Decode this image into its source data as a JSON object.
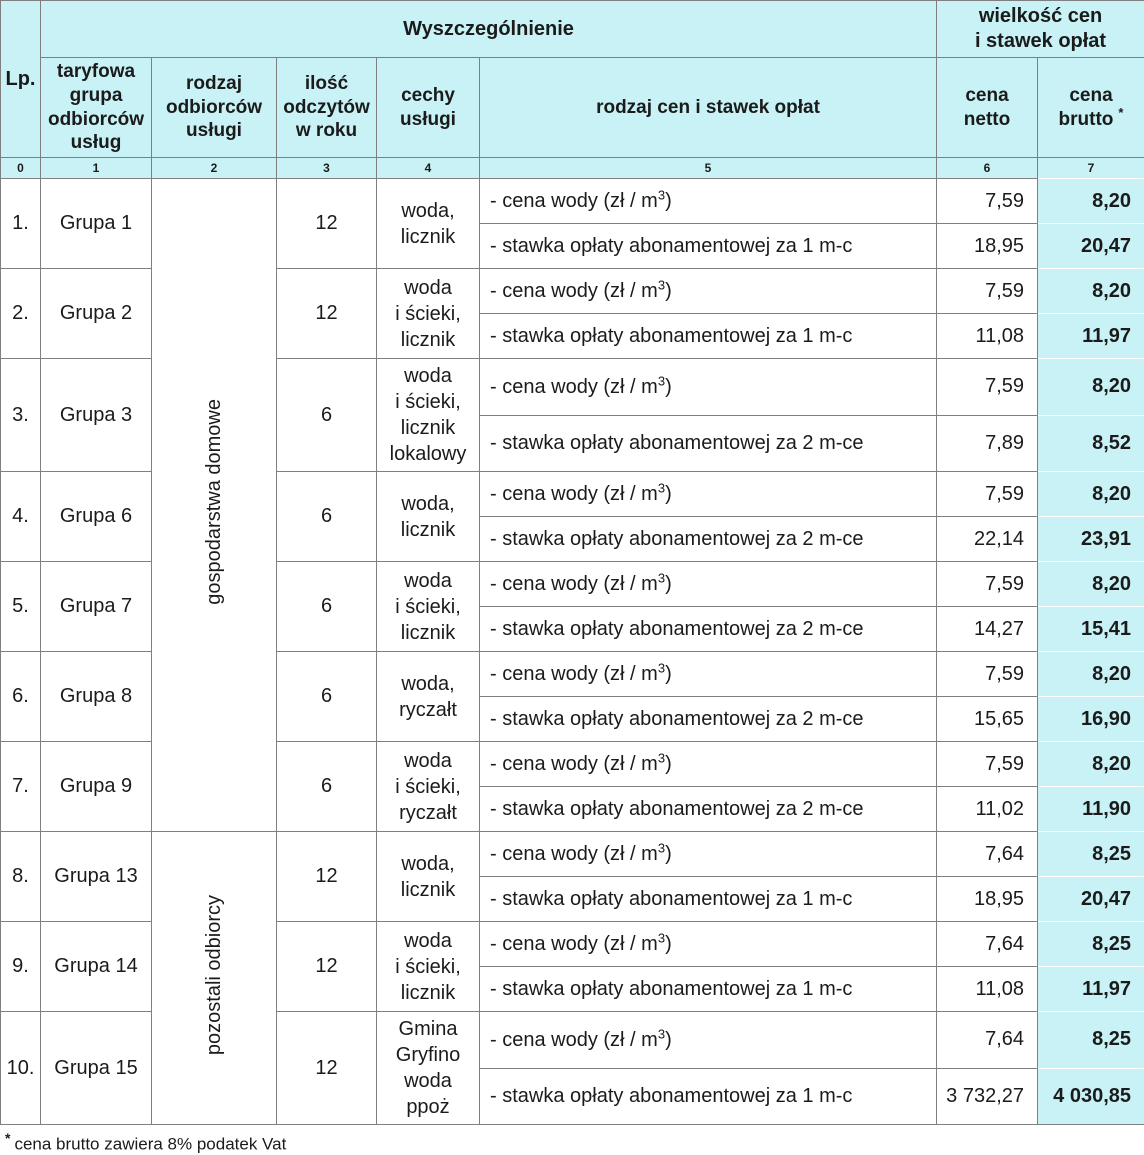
{
  "colors": {
    "header_bg": "#c8f2f5",
    "brutto_bg": "#c8f2f5",
    "border": "#7f7f7f",
    "text": "#1b1b1b"
  },
  "table": {
    "header": {
      "lp": "Lp.",
      "wyszczegolnienie": "Wyszczególnienie",
      "wielkosc": "wielkość cen\ni stawek opłat",
      "col_grupa": "taryfowa\ngrupa\nodbiorców\nusług",
      "col_rodzaj_odbiorcow": "rodzaj\nodbiorców\nusługi",
      "col_ilosc": "ilość\nodczytów\nw roku",
      "col_cechy": "cechy\nusługi",
      "col_rodzaj_cen": "rodzaj cen i stawek opłat",
      "col_netto": "cena\nnetto",
      "col_brutto": "cena\nbrutto",
      "col_brutto_star": "*",
      "numbers": [
        "0",
        "1",
        "2",
        "3",
        "4",
        "5",
        "6",
        "7"
      ]
    },
    "recipients": [
      {
        "label": "gospodarstwa domowe",
        "groups_spanned": 7
      },
      {
        "label": "pozostali odbiorcy",
        "groups_spanned": 3
      }
    ],
    "groups": [
      {
        "lp": "1.",
        "grupa": "Grupa 1",
        "odczyty": "12",
        "cechy": "woda,\nlicznik",
        "rows": [
          {
            "label": "- cena wody (zł / m",
            "sup": "3",
            "end": ")",
            "netto": "7,59",
            "brutto": "8,20"
          },
          {
            "label": "- stawka opłaty abonamentowej za 1 m-c",
            "sup": "",
            "end": "",
            "netto": "18,95",
            "brutto": "20,47"
          }
        ]
      },
      {
        "lp": "2.",
        "grupa": "Grupa 2",
        "odczyty": "12",
        "cechy": "woda\ni ścieki,\nlicznik",
        "rows": [
          {
            "label": "- cena wody (zł / m",
            "sup": "3",
            "end": ")",
            "netto": "7,59",
            "brutto": "8,20"
          },
          {
            "label": "- stawka opłaty abonamentowej za 1 m-c",
            "sup": "",
            "end": "",
            "netto": "11,08",
            "brutto": "11,97"
          }
        ]
      },
      {
        "lp": "3.",
        "grupa": "Grupa 3",
        "odczyty": "6",
        "cechy": "woda\ni ścieki,\nlicznik\nlokalowy",
        "rows": [
          {
            "label": "- cena wody (zł / m",
            "sup": "3",
            "end": ")",
            "netto": "7,59",
            "brutto": "8,20"
          },
          {
            "label": "- stawka opłaty abonamentowej za 2 m-ce",
            "sup": "",
            "end": "",
            "netto": "7,89",
            "brutto": "8,52"
          }
        ]
      },
      {
        "lp": "4.",
        "grupa": "Grupa 6",
        "odczyty": "6",
        "cechy": "woda,\nlicznik",
        "rows": [
          {
            "label": "- cena wody (zł / m",
            "sup": "3",
            "end": ")",
            "netto": "7,59",
            "brutto": "8,20"
          },
          {
            "label": "- stawka opłaty abonamentowej za 2 m-ce",
            "sup": "",
            "end": "",
            "netto": "22,14",
            "brutto": "23,91"
          }
        ]
      },
      {
        "lp": "5.",
        "grupa": "Grupa 7",
        "odczyty": "6",
        "cechy": "woda\ni ścieki,\nlicznik",
        "rows": [
          {
            "label": "- cena wody (zł / m",
            "sup": "3",
            "end": ")",
            "netto": "7,59",
            "brutto": "8,20"
          },
          {
            "label": "- stawka opłaty abonamentowej za 2 m-ce",
            "sup": "",
            "end": "",
            "netto": "14,27",
            "brutto": "15,41"
          }
        ]
      },
      {
        "lp": "6.",
        "grupa": "Grupa 8",
        "odczyty": "6",
        "cechy": "woda,\nryczałt",
        "rows": [
          {
            "label": "- cena wody (zł / m",
            "sup": "3",
            "end": ")",
            "netto": "7,59",
            "brutto": "8,20"
          },
          {
            "label": "- stawka opłaty abonamentowej za 2 m-ce",
            "sup": "",
            "end": "",
            "netto": "15,65",
            "brutto": "16,90"
          }
        ]
      },
      {
        "lp": "7.",
        "grupa": "Grupa 9",
        "odczyty": "6",
        "cechy": "woda\ni ścieki,\nryczałt",
        "rows": [
          {
            "label": "- cena wody (zł / m",
            "sup": "3",
            "end": ")",
            "netto": "7,59",
            "brutto": "8,20"
          },
          {
            "label": "- stawka opłaty abonamentowej za 2 m-ce",
            "sup": "",
            "end": "",
            "netto": "11,02",
            "brutto": "11,90"
          }
        ]
      },
      {
        "lp": "8.",
        "grupa": "Grupa 13",
        "odczyty": "12",
        "cechy": "woda,\nlicznik",
        "rows": [
          {
            "label": "- cena wody (zł / m",
            "sup": "3",
            "end": ")",
            "netto": "7,64",
            "brutto": "8,25"
          },
          {
            "label": "- stawka opłaty abonamentowej za 1 m-c",
            "sup": "",
            "end": "",
            "netto": "18,95",
            "brutto": "20,47"
          }
        ]
      },
      {
        "lp": "9.",
        "grupa": "Grupa 14",
        "odczyty": "12",
        "cechy": "woda\ni ścieki,\nlicznik",
        "rows": [
          {
            "label": "- cena wody (zł / m",
            "sup": "3",
            "end": ")",
            "netto": "7,64",
            "brutto": "8,25"
          },
          {
            "label": "- stawka opłaty abonamentowej za 1 m-c",
            "sup": "",
            "end": "",
            "netto": "11,08",
            "brutto": "11,97"
          }
        ]
      },
      {
        "lp": "10.",
        "grupa": "Grupa 15",
        "odczyty": "12",
        "cechy": "Gmina\nGryfino\nwoda\nppoż",
        "rows": [
          {
            "label": "- cena wody (zł / m",
            "sup": "3",
            "end": ")",
            "netto": "7,64",
            "brutto": "8,25"
          },
          {
            "label": "- stawka opłaty abonamentowej za 1 m-c",
            "sup": "",
            "end": "",
            "netto": "3 732,27",
            "brutto": "4 030,85"
          }
        ]
      }
    ]
  },
  "footnote": {
    "star": "*",
    "text": "cena brutto zawiera 8% podatek Vat"
  }
}
